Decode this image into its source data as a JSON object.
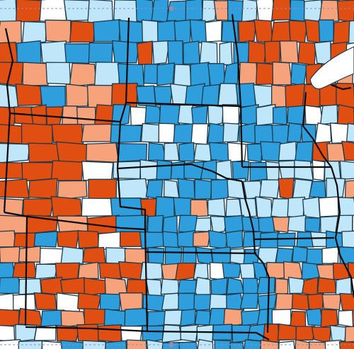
{
  "map": {
    "colors": {
      "strong_red": "#e04e12",
      "light_red": "#f6a27a",
      "light_blue": "#bfe6f9",
      "strong_blue": "#2e9fdc",
      "no_data": "#ffffff",
      "county_border": "#1f3a4a",
      "state_border": "#0a0a0a"
    },
    "selection_handle_color": "#8f8fb8"
  }
}
